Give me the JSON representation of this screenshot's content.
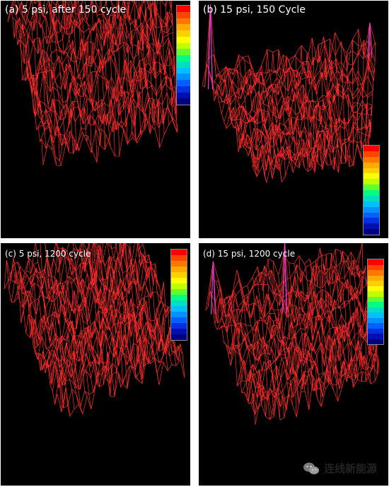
{
  "panels": {
    "a": {
      "label": "(a) 5 psi, after 150 cycle"
    },
    "b": {
      "label": "(b) 15 psi, 150 Cycle"
    },
    "c": {
      "label": "(c) 5 psi, 1200 cycle"
    },
    "d": {
      "label": "(d) 15 psi, 1200 cycle"
    }
  },
  "colors": {
    "mesh": "#ff2a2a",
    "peak": "#e040e0",
    "base_gradient": [
      "#ffffff",
      "#e8f040",
      "#40c070",
      "#2080c0",
      "#2030a0"
    ],
    "colorbar": [
      "#ff0000",
      "#ff4400",
      "#ff7700",
      "#ffaa00",
      "#ffd000",
      "#ffff00",
      "#c0ff00",
      "#60ff30",
      "#00ff80",
      "#00e0c0",
      "#00c0ff",
      "#0090ff",
      "#0060ff",
      "#0030e0",
      "#0010b0",
      "#000080"
    ]
  },
  "watermark": {
    "text": "连线新能源",
    "icon": "wechat-icon"
  }
}
